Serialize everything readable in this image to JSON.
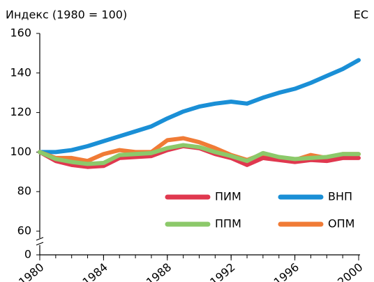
{
  "chart_data": {
    "type": "line",
    "y_label": "Индекс (1980 = 100)",
    "region": "ЕС",
    "x": [
      1980,
      1981,
      1982,
      1983,
      1984,
      1985,
      1986,
      1987,
      1988,
      1989,
      1990,
      1991,
      1992,
      1993,
      1994,
      1995,
      1996,
      1997,
      1998,
      1999,
      2000
    ],
    "xlim": [
      1980,
      2000
    ],
    "xticks": [
      1980,
      1984,
      1988,
      1992,
      1996,
      2000
    ],
    "ylim": [
      0,
      160
    ],
    "yticks": [
      0,
      60,
      80,
      100,
      120,
      140,
      160
    ],
    "axis_break": [
      0,
      60
    ],
    "series": [
      {
        "name": "ВНП",
        "color": "#1a8fd6",
        "values": [
          100,
          100,
          101,
          103,
          105.5,
          108,
          110.5,
          113,
          117,
          120.5,
          123,
          124.5,
          125.5,
          124.5,
          127.5,
          130,
          132,
          135,
          138.5,
          142,
          146.5
        ]
      },
      {
        "name": "ОПМ",
        "color": "#f07b36",
        "values": [
          100,
          97,
          97,
          95.5,
          99,
          101,
          100,
          100,
          106,
          107,
          105,
          102,
          98.5,
          96,
          99,
          97,
          96,
          98.5,
          97,
          99,
          99
        ]
      },
      {
        "name": "ПИМ",
        "color": "#e0384f",
        "values": [
          100,
          95.5,
          93.5,
          92.5,
          93,
          97,
          97.5,
          98,
          101,
          103,
          102,
          99,
          97,
          93.5,
          97,
          96,
          95,
          96,
          95.5,
          97,
          97
        ]
      },
      {
        "name": "ППМ",
        "color": "#8cc96a",
        "values": [
          100,
          96.5,
          95,
          94,
          94.5,
          98.5,
          99,
          99.5,
          102,
          103.5,
          102.5,
          100,
          98,
          95.5,
          99.5,
          97.5,
          96.5,
          97,
          97.5,
          99,
          99
        ]
      }
    ]
  }
}
